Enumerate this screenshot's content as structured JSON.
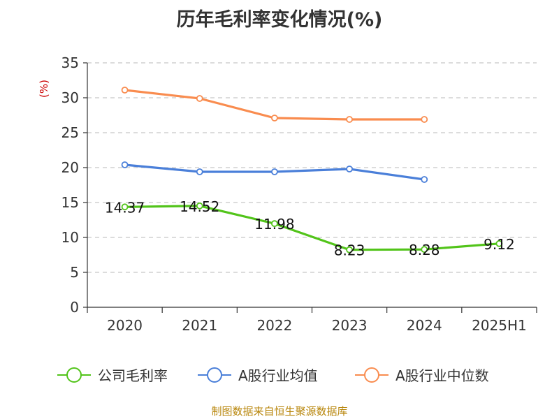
{
  "chart_data": {
    "type": "line",
    "title": "历年毛利率变化情况(%)",
    "ylabel": "(%)",
    "xlabel": "",
    "categories": [
      "2020",
      "2021",
      "2022",
      "2023",
      "2024",
      "2025H1"
    ],
    "ylim": [
      0,
      35
    ],
    "yticks": [
      0,
      5,
      10,
      15,
      20,
      25,
      30,
      35
    ],
    "grid": true,
    "legend_position": "bottom",
    "series": [
      {
        "name": "公司毛利率",
        "color": "#52c41a",
        "values": [
          14.37,
          14.52,
          11.98,
          8.23,
          8.28,
          9.12
        ],
        "labels": [
          "14.37",
          "14.52",
          "11.98",
          "8.23",
          "8.28",
          "9.12"
        ]
      },
      {
        "name": "A股行业均值",
        "color": "#4a7fd9",
        "values": [
          20.4,
          19.4,
          19.4,
          19.8,
          18.3,
          null
        ]
      },
      {
        "name": "A股行业中位数",
        "color": "#f98c4f",
        "values": [
          31.1,
          29.9,
          27.1,
          26.9,
          26.9,
          null
        ]
      }
    ]
  },
  "source": "制图数据来自恒生聚源数据库"
}
